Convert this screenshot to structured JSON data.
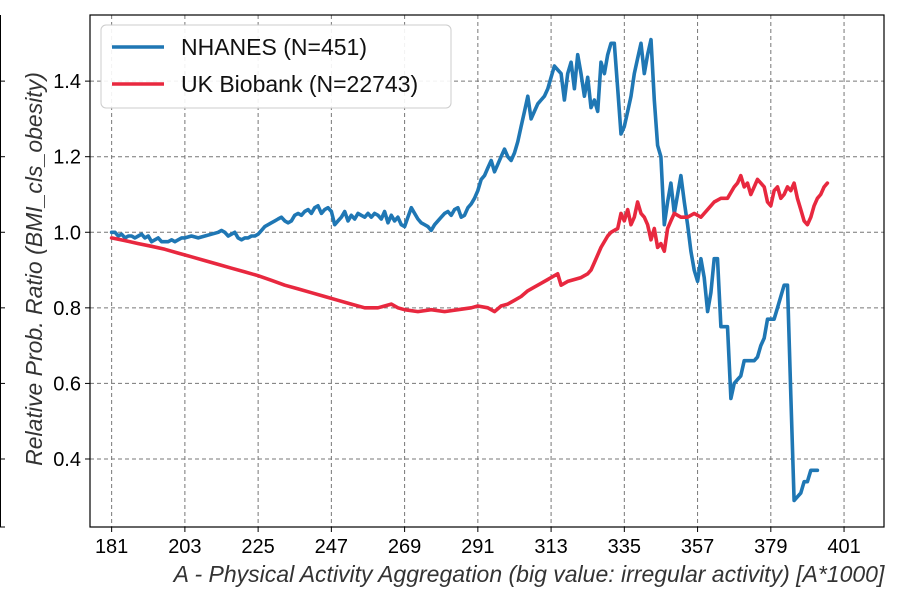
{
  "chart_data": {
    "type": "line",
    "title": "",
    "xlabel": "A - Physical Activity Aggregation (big value: irregular activity) [A*1000]",
    "ylabel": "Relative Prob. Ratio (BMI_cls_obesity)",
    "xlim": [
      174.5,
      413
    ],
    "ylim": [
      0.22,
      1.575
    ],
    "xticks": [
      181,
      203,
      225,
      247,
      269,
      291,
      313,
      335,
      357,
      379,
      401
    ],
    "yticks": [
      0.4,
      0.6,
      0.8,
      1.0,
      1.2,
      1.4
    ],
    "ytick_labels": [
      "0.4",
      "0.6",
      "0.8",
      "1.0",
      "1.2",
      "1.4"
    ],
    "grid": true,
    "legend_position": "top-left",
    "series": [
      {
        "name": "NHANES (N=451)",
        "color": "#1f77b4",
        "points": [
          [
            181,
            1.0
          ],
          [
            182,
            1.0
          ],
          [
            183,
            0.99
          ],
          [
            184,
            0.995
          ],
          [
            185,
            0.985
          ],
          [
            186,
            0.99
          ],
          [
            187,
            0.99
          ],
          [
            188,
            0.985
          ],
          [
            189,
            0.99
          ],
          [
            190,
            0.995
          ],
          [
            191,
            0.985
          ],
          [
            192,
            0.99
          ],
          [
            193,
            0.975
          ],
          [
            194,
            0.98
          ],
          [
            195,
            0.985
          ],
          [
            196,
            0.975
          ],
          [
            197,
            0.975
          ],
          [
            198,
            0.975
          ],
          [
            199,
            0.98
          ],
          [
            200,
            0.975
          ],
          [
            201,
            0.98
          ],
          [
            202,
            0.985
          ],
          [
            203,
            0.985
          ],
          [
            205,
            0.99
          ],
          [
            207,
            0.985
          ],
          [
            209,
            0.99
          ],
          [
            211,
            0.995
          ],
          [
            213,
            1.0
          ],
          [
            214,
            1.005
          ],
          [
            215,
            1.0
          ],
          [
            216,
            0.99
          ],
          [
            217,
            0.995
          ],
          [
            218,
            1.0
          ],
          [
            219,
            0.985
          ],
          [
            220,
            0.98
          ],
          [
            221,
            0.985
          ],
          [
            222,
            0.985
          ],
          [
            223,
            0.99
          ],
          [
            224,
            0.99
          ],
          [
            225,
            0.995
          ],
          [
            226,
            1.005
          ],
          [
            227,
            1.015
          ],
          [
            228,
            1.02
          ],
          [
            229,
            1.025
          ],
          [
            230,
            1.03
          ],
          [
            231,
            1.035
          ],
          [
            232,
            1.04
          ],
          [
            233,
            1.03
          ],
          [
            234,
            1.025
          ],
          [
            235,
            1.03
          ],
          [
            236,
            1.045
          ],
          [
            237,
            1.05
          ],
          [
            238,
            1.045
          ],
          [
            239,
            1.055
          ],
          [
            240,
            1.06
          ],
          [
            241,
            1.05
          ],
          [
            242,
            1.065
          ],
          [
            243,
            1.07
          ],
          [
            244,
            1.05
          ],
          [
            245,
            1.06
          ],
          [
            246,
            1.065
          ],
          [
            247,
            1.055
          ],
          [
            248,
            1.02
          ],
          [
            249,
            1.03
          ],
          [
            250,
            1.04
          ],
          [
            251,
            1.055
          ],
          [
            252,
            1.03
          ],
          [
            253,
            1.045
          ],
          [
            254,
            1.035
          ],
          [
            255,
            1.05
          ],
          [
            256,
            1.045
          ],
          [
            257,
            1.04
          ],
          [
            258,
            1.05
          ],
          [
            259,
            1.04
          ],
          [
            260,
            1.05
          ],
          [
            261,
            1.045
          ],
          [
            262,
            1.035
          ],
          [
            263,
            1.055
          ],
          [
            264,
            1.025
          ],
          [
            265,
            1.045
          ],
          [
            266,
            1.03
          ],
          [
            267,
            1.04
          ],
          [
            268,
            1.02
          ],
          [
            269,
            1.015
          ],
          [
            270,
            1.04
          ],
          [
            271,
            1.065
          ],
          [
            272,
            1.05
          ],
          [
            273,
            1.035
          ],
          [
            274,
            1.025
          ],
          [
            275,
            1.02
          ],
          [
            276,
            1.015
          ],
          [
            277,
            1.005
          ],
          [
            278,
            1.02
          ],
          [
            279,
            1.03
          ],
          [
            280,
            1.04
          ],
          [
            281,
            1.05
          ],
          [
            282,
            1.055
          ],
          [
            283,
            1.045
          ],
          [
            284,
            1.06
          ],
          [
            285,
            1.065
          ],
          [
            286,
            1.04
          ],
          [
            287,
            1.045
          ],
          [
            288,
            1.065
          ],
          [
            289,
            1.075
          ],
          [
            290,
            1.09
          ],
          [
            291,
            1.11
          ],
          [
            292,
            1.14
          ],
          [
            293,
            1.15
          ],
          [
            294,
            1.17
          ],
          [
            295,
            1.19
          ],
          [
            296,
            1.16
          ],
          [
            297,
            1.18
          ],
          [
            298,
            1.2
          ],
          [
            299,
            1.22
          ],
          [
            300,
            1.2
          ],
          [
            301,
            1.19
          ],
          [
            302,
            1.21
          ],
          [
            303,
            1.24
          ],
          [
            304,
            1.28
          ],
          [
            305,
            1.32
          ],
          [
            306,
            1.36
          ],
          [
            307,
            1.3
          ],
          [
            308,
            1.32
          ],
          [
            309,
            1.34
          ],
          [
            310,
            1.35
          ],
          [
            311,
            1.36
          ],
          [
            312,
            1.38
          ],
          [
            313,
            1.41
          ],
          [
            314,
            1.44
          ],
          [
            315,
            1.43
          ],
          [
            316,
            1.42
          ],
          [
            317,
            1.35
          ],
          [
            318,
            1.42
          ],
          [
            319,
            1.45
          ],
          [
            320,
            1.38
          ],
          [
            321,
            1.47
          ],
          [
            322,
            1.42
          ],
          [
            323,
            1.36
          ],
          [
            324,
            1.41
          ],
          [
            325,
            1.33
          ],
          [
            326,
            1.35
          ],
          [
            327,
            1.32
          ],
          [
            328,
            1.45
          ],
          [
            329,
            1.42
          ],
          [
            330,
            1.47
          ],
          [
            331,
            1.5
          ],
          [
            332,
            1.5
          ],
          [
            333,
            1.38
          ],
          [
            334,
            1.26
          ],
          [
            335,
            1.28
          ],
          [
            336,
            1.32
          ],
          [
            337,
            1.36
          ],
          [
            338,
            1.42
          ],
          [
            339,
            1.46
          ],
          [
            340,
            1.5
          ],
          [
            341,
            1.42
          ],
          [
            342,
            1.47
          ],
          [
            343,
            1.51
          ],
          [
            344,
            1.35
          ],
          [
            345,
            1.23
          ],
          [
            346,
            1.2
          ],
          [
            347,
            1.02
          ],
          [
            348,
            1.08
          ],
          [
            349,
            1.13
          ],
          [
            350,
            1.05
          ],
          [
            351,
            1.1
          ],
          [
            352,
            1.15
          ],
          [
            353,
            1.08
          ],
          [
            354,
            1.02
          ],
          [
            355,
            0.95
          ],
          [
            356,
            0.9
          ],
          [
            357,
            0.87
          ],
          [
            358,
            0.93
          ],
          [
            359,
            0.88
          ],
          [
            360,
            0.79
          ],
          [
            361,
            0.84
          ],
          [
            362,
            0.93
          ],
          [
            363,
            0.93
          ],
          [
            364,
            0.75
          ],
          [
            365,
            0.75
          ],
          [
            366,
            0.75
          ],
          [
            367,
            0.56
          ],
          [
            368,
            0.6
          ],
          [
            369,
            0.61
          ],
          [
            370,
            0.62
          ],
          [
            371,
            0.66
          ],
          [
            372,
            0.66
          ],
          [
            373,
            0.66
          ],
          [
            374,
            0.66
          ],
          [
            375,
            0.67
          ],
          [
            376,
            0.7
          ],
          [
            377,
            0.72
          ],
          [
            378,
            0.77
          ],
          [
            379,
            0.77
          ],
          [
            380,
            0.77
          ],
          [
            381,
            0.8
          ],
          [
            382,
            0.83
          ],
          [
            383,
            0.86
          ],
          [
            384,
            0.86
          ],
          [
            385,
            0.57
          ],
          [
            386,
            0.29
          ],
          [
            387,
            0.3
          ],
          [
            388,
            0.31
          ],
          [
            389,
            0.34
          ],
          [
            390,
            0.34
          ],
          [
            391,
            0.37
          ],
          [
            392,
            0.37
          ],
          [
            393,
            0.37
          ]
        ]
      },
      {
        "name": "UK Biobank (N=22743)",
        "color": "#e8283f",
        "points": [
          [
            181,
            0.985
          ],
          [
            185,
            0.978
          ],
          [
            189,
            0.97
          ],
          [
            193,
            0.963
          ],
          [
            197,
            0.955
          ],
          [
            201,
            0.945
          ],
          [
            205,
            0.935
          ],
          [
            209,
            0.925
          ],
          [
            213,
            0.915
          ],
          [
            217,
            0.905
          ],
          [
            221,
            0.895
          ],
          [
            225,
            0.885
          ],
          [
            229,
            0.873
          ],
          [
            233,
            0.86
          ],
          [
            237,
            0.85
          ],
          [
            241,
            0.84
          ],
          [
            245,
            0.83
          ],
          [
            249,
            0.82
          ],
          [
            253,
            0.81
          ],
          [
            257,
            0.8
          ],
          [
            261,
            0.8
          ],
          [
            265,
            0.81
          ],
          [
            267,
            0.8
          ],
          [
            269,
            0.795
          ],
          [
            273,
            0.79
          ],
          [
            277,
            0.795
          ],
          [
            281,
            0.79
          ],
          [
            285,
            0.795
          ],
          [
            289,
            0.8
          ],
          [
            291,
            0.805
          ],
          [
            294,
            0.8
          ],
          [
            296,
            0.79
          ],
          [
            298,
            0.805
          ],
          [
            300,
            0.81
          ],
          [
            302,
            0.82
          ],
          [
            304,
            0.83
          ],
          [
            306,
            0.845
          ],
          [
            308,
            0.855
          ],
          [
            310,
            0.865
          ],
          [
            312,
            0.875
          ],
          [
            313,
            0.88
          ],
          [
            315,
            0.89
          ],
          [
            316,
            0.86
          ],
          [
            318,
            0.87
          ],
          [
            320,
            0.875
          ],
          [
            322,
            0.88
          ],
          [
            324,
            0.89
          ],
          [
            325,
            0.9
          ],
          [
            326,
            0.92
          ],
          [
            328,
            0.96
          ],
          [
            330,
            0.99
          ],
          [
            331,
            1.0
          ],
          [
            333,
            1.01
          ],
          [
            334,
            1.05
          ],
          [
            335,
            1.03
          ],
          [
            336,
            1.06
          ],
          [
            337,
            1.02
          ],
          [
            338,
            1.04
          ],
          [
            339,
            1.08
          ],
          [
            340,
            1.05
          ],
          [
            341,
            1.04
          ],
          [
            342,
            1.02
          ],
          [
            343,
            0.98
          ],
          [
            344,
            1.01
          ],
          [
            345,
            0.96
          ],
          [
            346,
            0.97
          ],
          [
            347,
            0.95
          ],
          [
            348,
            1.01
          ],
          [
            349,
            1.03
          ],
          [
            350,
            1.05
          ],
          [
            352,
            1.04
          ],
          [
            354,
            1.04
          ],
          [
            356,
            1.05
          ],
          [
            358,
            1.04
          ],
          [
            360,
            1.06
          ],
          [
            362,
            1.08
          ],
          [
            364,
            1.09
          ],
          [
            366,
            1.09
          ],
          [
            368,
            1.12
          ],
          [
            369,
            1.13
          ],
          [
            370,
            1.15
          ],
          [
            371,
            1.12
          ],
          [
            372,
            1.13
          ],
          [
            373,
            1.1
          ],
          [
            374,
            1.12
          ],
          [
            375,
            1.14
          ],
          [
            376,
            1.13
          ],
          [
            377,
            1.12
          ],
          [
            378,
            1.08
          ],
          [
            379,
            1.07
          ],
          [
            380,
            1.11
          ],
          [
            381,
            1.12
          ],
          [
            382,
            1.09
          ],
          [
            383,
            1.1
          ],
          [
            384,
            1.12
          ],
          [
            385,
            1.11
          ],
          [
            386,
            1.13
          ],
          [
            387,
            1.09
          ],
          [
            388,
            1.06
          ],
          [
            389,
            1.03
          ],
          [
            390,
            1.02
          ],
          [
            391,
            1.04
          ],
          [
            392,
            1.07
          ],
          [
            393,
            1.09
          ],
          [
            394,
            1.1
          ],
          [
            395,
            1.12
          ],
          [
            396,
            1.13
          ]
        ]
      }
    ]
  }
}
